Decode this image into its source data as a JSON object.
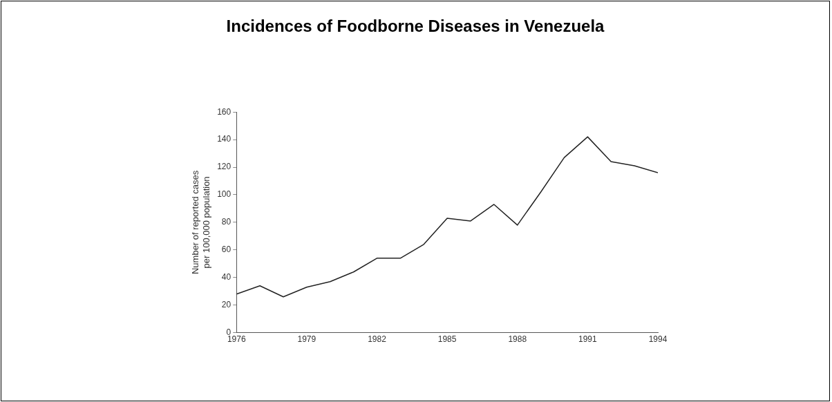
{
  "chart_data": {
    "type": "line",
    "title": "Incidences of Foodborne Diseases in Venezuela",
    "ylabel": "Number of reported cases\nper 100,000 population",
    "x": [
      1976,
      1977,
      1978,
      1979,
      1980,
      1981,
      1982,
      1983,
      1984,
      1985,
      1986,
      1987,
      1988,
      1989,
      1990,
      1991,
      1992,
      1993,
      1994
    ],
    "series": [
      {
        "color": "#222222",
        "values": [
          28,
          34,
          26,
          33,
          37,
          44,
          54,
          54,
          64,
          83,
          81,
          93,
          78,
          102,
          127,
          142,
          124,
          121,
          116
        ]
      }
    ],
    "xlim": [
      1976,
      1994
    ],
    "xticks": [
      1976,
      1979,
      1982,
      1985,
      1988,
      1991,
      1994
    ],
    "ylim": [
      0,
      160
    ],
    "yticks": [
      0,
      20,
      40,
      60,
      80,
      100,
      120,
      140,
      160
    ],
    "grid": false,
    "legend": false,
    "marker": "none",
    "line_style": "solid"
  }
}
